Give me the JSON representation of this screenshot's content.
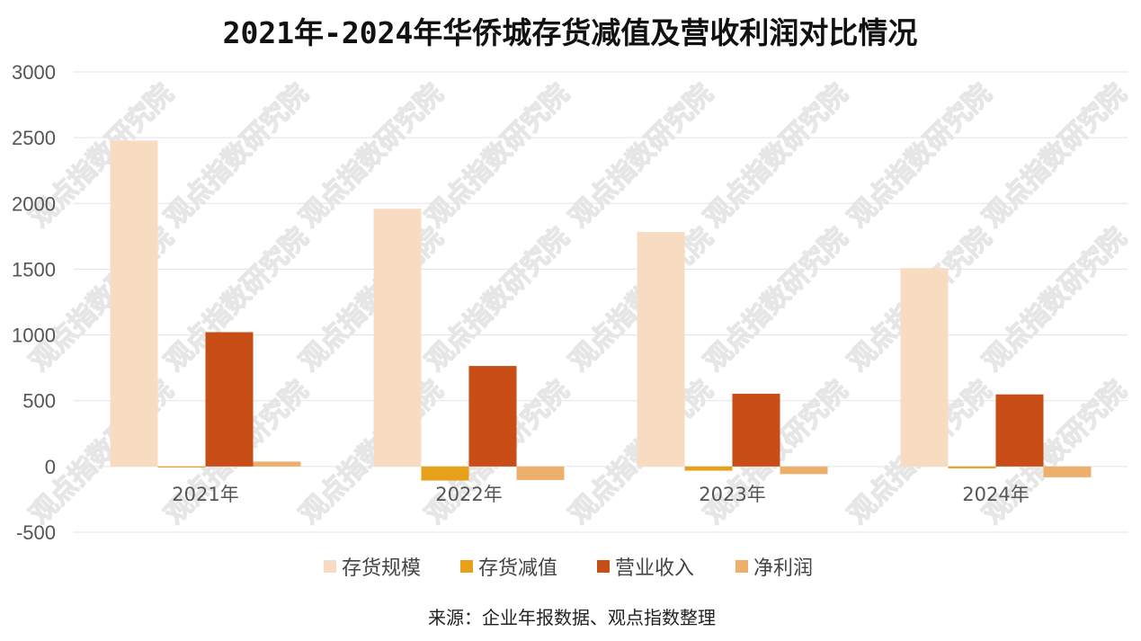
{
  "chart_data": {
    "type": "bar",
    "title": "2021年-2024年华侨城存货减值及营收利润对比情况",
    "categories": [
      "2021年",
      "2022年",
      "2023年",
      "2024年"
    ],
    "series": [
      {
        "name": "存货规模",
        "color": "#F8DCC2",
        "values": [
          2478,
          1960,
          1783,
          1508
        ]
      },
      {
        "name": "存货减值",
        "color": "#E6A019",
        "values": [
          -8,
          -107,
          -32,
          -14
        ]
      },
      {
        "name": "营业收入",
        "color": "#C84D17",
        "values": [
          1021,
          764,
          553,
          548
        ]
      },
      {
        "name": "净利润",
        "color": "#ECAF6C",
        "values": [
          37,
          -103,
          -58,
          -82
        ]
      }
    ],
    "ylim": [
      -500,
      3000
    ],
    "yticks": [
      "3000",
      "2500",
      "2000",
      "1500",
      "1000",
      "500",
      "0",
      "-500"
    ],
    "grid": true,
    "legend_position": "bottom"
  },
  "source": "来源：企业年报数据、观点指数整理",
  "watermark": "观点指数研究院"
}
